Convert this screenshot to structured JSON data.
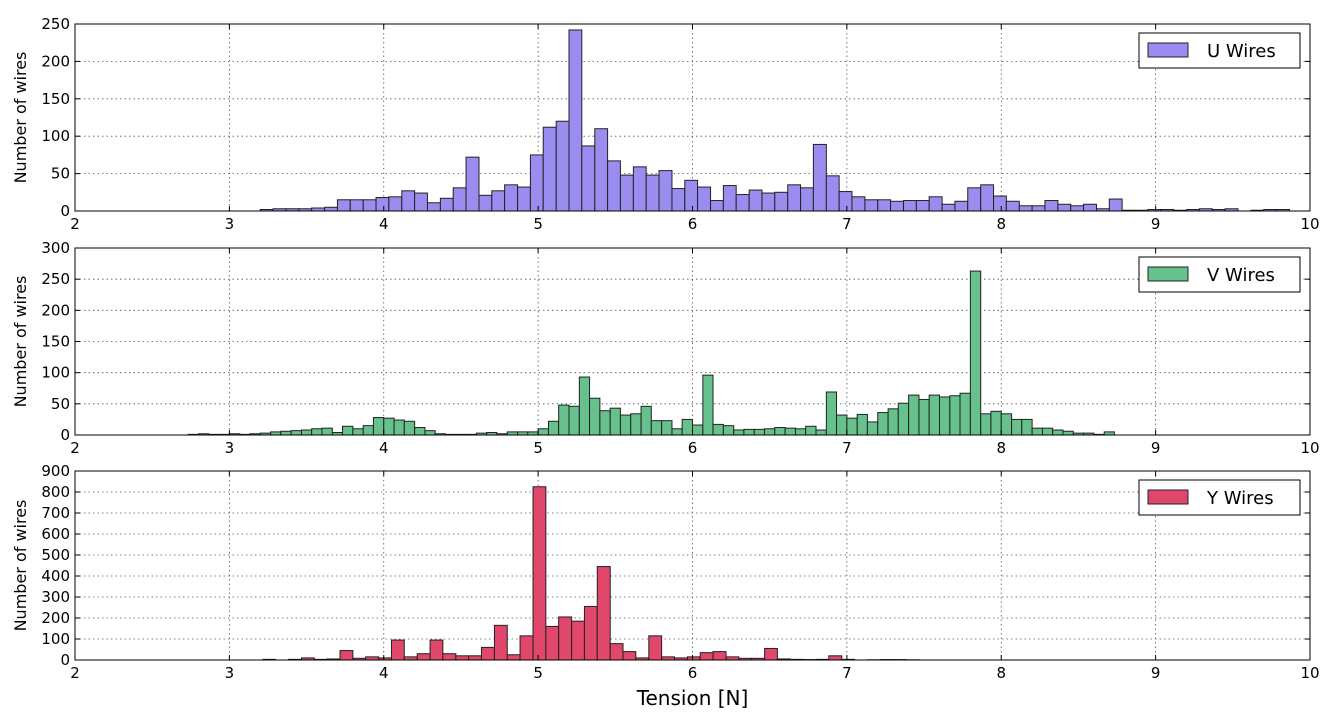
{
  "chart_data": [
    {
      "type": "histogram",
      "name": "U Wires",
      "color": "#9b8cf0",
      "ylabel": "Number of wires",
      "grid": true,
      "legend": "upper right",
      "xlim": [
        2,
        10
      ],
      "xticks": [
        2,
        3,
        4,
        5,
        6,
        7,
        8,
        9,
        10
      ],
      "ylim": [
        0,
        250
      ],
      "yticks": [
        0,
        50,
        100,
        150,
        200,
        250
      ],
      "bins": [
        3.2,
        3.283,
        3.367,
        3.45,
        3.533,
        3.617,
        3.7,
        3.783,
        3.867,
        3.95,
        4.033,
        4.117,
        4.2,
        4.283,
        4.367,
        4.45,
        4.533,
        4.617,
        4.7,
        4.783,
        4.867,
        4.95,
        5.033,
        5.117,
        5.2,
        5.283,
        5.367,
        5.45,
        5.533,
        5.617,
        5.7,
        5.783,
        5.867,
        5.95,
        6.033,
        6.117,
        6.2,
        6.283,
        6.367,
        6.45,
        6.533,
        6.617,
        6.7,
        6.783,
        6.867,
        6.95,
        7.033,
        7.117,
        7.2,
        7.283,
        7.367,
        7.45,
        7.533,
        7.617,
        7.7,
        7.783,
        7.867,
        7.95,
        8.033,
        8.117,
        8.2,
        8.283,
        8.367,
        8.45,
        8.533,
        8.617,
        8.7,
        8.783,
        8.867,
        8.95,
        9.033,
        9.117,
        9.2,
        9.283,
        9.367,
        9.45,
        9.533,
        9.617,
        9.7,
        9.783,
        9.867
      ],
      "values": [
        2,
        3,
        3,
        3,
        4,
        5,
        15,
        15,
        15,
        18,
        19,
        27,
        24,
        11,
        17,
        31,
        72,
        21,
        27,
        35,
        32,
        75,
        112,
        120,
        242,
        87,
        110,
        67,
        48,
        59,
        48,
        54,
        30,
        41,
        32,
        14,
        34,
        22,
        28,
        24,
        25,
        35,
        31,
        89,
        47,
        26,
        19,
        15,
        15,
        13,
        14,
        14,
        19,
        9,
        13,
        31,
        35,
        20,
        13,
        7,
        7,
        14,
        9,
        7,
        9,
        3,
        16,
        1,
        1,
        2,
        2,
        1,
        2,
        3,
        2,
        3,
        0,
        1,
        2,
        2
      ]
    },
    {
      "type": "histogram",
      "name": "V Wires",
      "color": "#66c18c",
      "ylabel": "Number of wires",
      "grid": true,
      "legend": "upper right",
      "xlim": [
        2,
        10
      ],
      "xticks": [
        2,
        3,
        4,
        5,
        6,
        7,
        8,
        9,
        10
      ],
      "ylim": [
        0,
        300
      ],
      "yticks": [
        0,
        50,
        100,
        150,
        200,
        250,
        300
      ],
      "bins": [
        2.733,
        2.8,
        2.867,
        2.933,
        3.0,
        3.067,
        3.133,
        3.2,
        3.267,
        3.333,
        3.4,
        3.467,
        3.533,
        3.6,
        3.667,
        3.733,
        3.8,
        3.867,
        3.933,
        4.0,
        4.067,
        4.133,
        4.2,
        4.267,
        4.333,
        4.4,
        4.467,
        4.533,
        4.6,
        4.667,
        4.733,
        4.8,
        4.867,
        4.933,
        5.0,
        5.067,
        5.133,
        5.2,
        5.267,
        5.333,
        5.4,
        5.467,
        5.533,
        5.6,
        5.667,
        5.733,
        5.8,
        5.867,
        5.933,
        6.0,
        6.067,
        6.133,
        6.2,
        6.267,
        6.333,
        6.4,
        6.467,
        6.533,
        6.6,
        6.667,
        6.733,
        6.8,
        6.867,
        6.933,
        7.0,
        7.067,
        7.133,
        7.2,
        7.267,
        7.333,
        7.4,
        7.467,
        7.533,
        7.6,
        7.667,
        7.733,
        7.8,
        7.867,
        7.933,
        8.0,
        8.067,
        8.133,
        8.2,
        8.267,
        8.333,
        8.4,
        8.467,
        8.533,
        8.6,
        8.667,
        8.733
      ],
      "values": [
        1,
        2,
        1,
        1,
        2,
        1,
        2,
        3,
        5,
        6,
        7,
        8,
        10,
        11,
        4,
        14,
        10,
        15,
        28,
        27,
        24,
        22,
        12,
        7,
        2,
        1,
        1,
        1,
        3,
        4,
        2,
        5,
        5,
        5,
        10,
        22,
        48,
        46,
        93,
        59,
        39,
        43,
        32,
        34,
        46,
        23,
        23,
        10,
        25,
        16,
        96,
        17,
        15,
        8,
        9,
        9,
        10,
        12,
        11,
        10,
        14,
        8,
        69,
        32,
        27,
        33,
        21,
        36,
        42,
        51,
        64,
        57,
        64,
        61,
        63,
        67,
        263,
        34,
        38,
        34,
        25,
        25,
        11,
        11,
        8,
        6,
        3,
        3,
        1,
        5
      ]
    },
    {
      "type": "histogram",
      "name": "Y Wires",
      "color": "#e0476a",
      "ylabel": "Number of wires",
      "xlabel": "Tension [N]",
      "grid": true,
      "legend": "upper right",
      "xlim": [
        2,
        10
      ],
      "xticks": [
        2,
        3,
        4,
        5,
        6,
        7,
        8,
        9,
        10
      ],
      "ylim": [
        0,
        900
      ],
      "yticks": [
        0,
        100,
        200,
        300,
        400,
        500,
        600,
        700,
        800,
        900
      ],
      "bins": [
        3.217,
        3.3,
        3.383,
        3.467,
        3.55,
        3.633,
        3.717,
        3.8,
        3.883,
        3.967,
        4.05,
        4.133,
        4.217,
        4.3,
        4.383,
        4.467,
        4.55,
        4.633,
        4.717,
        4.8,
        4.883,
        4.967,
        5.05,
        5.133,
        5.217,
        5.3,
        5.383,
        5.467,
        5.55,
        5.633,
        5.717,
        5.8,
        5.883,
        5.967,
        6.05,
        6.133,
        6.217,
        6.3,
        6.383,
        6.467,
        6.55,
        6.633,
        6.717,
        6.8,
        6.883,
        6.967,
        7.05,
        7.133,
        7.217,
        7.3,
        7.383,
        7.467
      ],
      "values": [
        3,
        0,
        3,
        10,
        3,
        5,
        45,
        8,
        15,
        10,
        95,
        15,
        30,
        95,
        30,
        20,
        20,
        60,
        165,
        25,
        115,
        825,
        160,
        205,
        185,
        255,
        445,
        78,
        40,
        10,
        115,
        15,
        10,
        15,
        35,
        40,
        15,
        8,
        8,
        55,
        5,
        3,
        2,
        3,
        20,
        3,
        0,
        1,
        2,
        2,
        1
      ]
    }
  ]
}
